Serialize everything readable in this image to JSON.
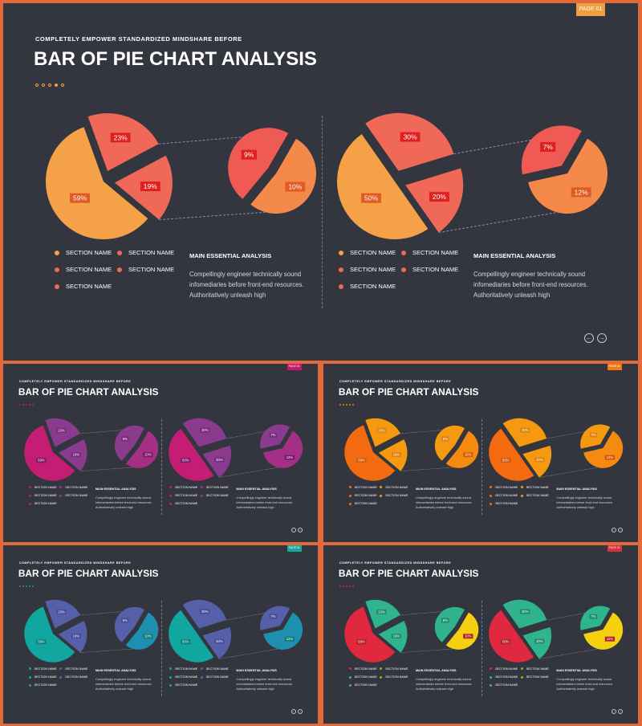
{
  "slides": [
    {
      "badge": "PAGE 01",
      "subtitle": "COMPLETELY EMPOWER STANDARDIZED MINDSHARE BEFORE",
      "title": "BAR OF PIE CHART ANALYSIS",
      "colors": {
        "badge": "#f0a040",
        "mainLarge": "#f5a148",
        "mainSmall": "#ef6858",
        "labelBg": "#e05a22",
        "redLabel": "#e02020",
        "detailLarge": "#f5894a",
        "detailSmall": "#ef5a54",
        "dotFill": "#f0a040",
        "legend": [
          "#f5a148",
          "#ef6858",
          "#ef6858",
          "#ef6858",
          "#ef6858"
        ]
      },
      "legend": [
        "SECTION NAME",
        "SECTION NAME",
        "SECTION NAME",
        "SECTION NAME",
        "SECTION NAME"
      ],
      "analysis": {
        "heading": "MAIN ESSENTIAL ANALYSIS",
        "body": "Compellingly engineer technically sound infomediaries before front-end resources. Authoritatively unleash high"
      },
      "nav": {
        "prev": "←",
        "next": "→"
      }
    },
    {
      "badge": "PAGE 01",
      "subtitle": "COMPLETELY EMPOWER STANDARDIZED MINDSHARE BEFORE",
      "title": "BAR OF PIE CHART ANALYSIS",
      "colors": {
        "badge": "#c41a6e",
        "mainLarge": "#c51c74",
        "mainSmall": "#8a3b8e",
        "labelBg": "#7a1a6a",
        "redLabel": "#7a2a7a",
        "detailLarge": "#a43085",
        "detailSmall": "#8a3b8e",
        "dotFill": "#c51c74",
        "legend": [
          "#c51c74",
          "#8a3b8e",
          "#c51c74",
          "#8a3b8e",
          "#c51c74"
        ]
      },
      "legend": [
        "SECTION NAME",
        "SECTION NAME",
        "SECTION NAME",
        "SECTION NAME",
        "SECTION NAME"
      ],
      "analysis": {
        "heading": "MAIN ESSENTIAL ANALYSIS",
        "body": "Compellingly engineer technically sound infomediaries before front-end resources. Authoritatively unleash high"
      },
      "nav": {
        "prev": "←",
        "next": "→"
      }
    },
    {
      "badge": "PAGE 01",
      "subtitle": "COMPLETELY EMPOWER STANDARDIZED MINDSHARE BEFORE",
      "title": "BAR OF PIE CHART ANALYSIS",
      "colors": {
        "badge": "#f07a10",
        "mainLarge": "#f46a10",
        "mainSmall": "#f59a10",
        "labelBg": "#d05a08",
        "redLabel": "#e08010",
        "detailLarge": "#f58a10",
        "detailSmall": "#f59a10",
        "dotFill": "#f07a10",
        "legend": [
          "#f46a10",
          "#f59a10",
          "#f46a10",
          "#f59a10",
          "#f46a10"
        ]
      },
      "legend": [
        "SECTION NAME",
        "SECTION NAME",
        "SECTION NAME",
        "SECTION NAME",
        "SECTION NAME"
      ],
      "analysis": {
        "heading": "MAIN ESSENTIAL ANALYSIS",
        "body": "Compellingly engineer technically sound infomediaries before front-end resources. Authoritatively unleash high"
      },
      "nav": {
        "prev": "←",
        "next": "→"
      }
    },
    {
      "badge": "PAGE 01",
      "subtitle": "COMPLETELY EMPOWER STANDARDIZED MINDSHARE BEFORE",
      "title": "BAR OF PIE CHART ANALYSIS",
      "colors": {
        "badge": "#16a89a",
        "mainLarge": "#11a6a0",
        "mainSmall": "#5560a8",
        "labelBg": "#0e7e78",
        "redLabel": "#4a4a9a",
        "detailLarge": "#1f8fb0",
        "detailSmall": "#5560a8",
        "dotFill": "#11a6a0",
        "legend": [
          "#11a6a0",
          "#5560a8",
          "#11a6a0",
          "#5560a8",
          "#11a6a0"
        ]
      },
      "legend": [
        "SECTION NAME",
        "SECTION NAME",
        "SECTION NAME",
        "SECTION NAME",
        "SECTION NAME"
      ],
      "analysis": {
        "heading": "MAIN ESSENTIAL ANALYSIS",
        "body": "Compellingly engineer technically sound infomediaries before front-end resources. Authoritatively unleash high"
      },
      "nav": {
        "prev": "←",
        "next": "→"
      }
    },
    {
      "badge": "PAGE 01",
      "subtitle": "COMPLETELY EMPOWER STANDARDIZED MINDSHARE BEFORE",
      "title": "BAR OF PIE CHART ANALYSIS",
      "colors": {
        "badge": "#d8303e",
        "mainLarge": "#e0283e",
        "mainSmall": "#2fb48e",
        "labelBg": "#b0202e",
        "redLabel": "#1f8a70",
        "detailLarge": "#f5d010",
        "detailSmall": "#2fb48e",
        "extra": "#7cba24",
        "dotFill": "#e0283e",
        "legend": [
          "#e0283e",
          "#7cba24",
          "#2fb48e",
          "#7cba24",
          "#2fb48e"
        ]
      },
      "legend": [
        "SECTION NAME",
        "SECTION NAME",
        "SECTION NAME",
        "SECTION NAME",
        "SECTION NAME"
      ],
      "analysis": {
        "heading": "MAIN ESSENTIAL ANALYSIS",
        "body": "Compellingly engineer technically sound infomediaries before front-end resources. Authoritatively unleash high"
      },
      "nav": {
        "prev": "←",
        "next": "→"
      }
    }
  ],
  "chart_data": [
    {
      "type": "pie",
      "title": "",
      "main": {
        "categories": [
          "",
          "",
          ""
        ],
        "values": [
          59,
          23,
          19
        ],
        "labels": [
          "59%",
          "23%",
          "19%"
        ]
      },
      "detail": {
        "values": [
          10,
          9
        ],
        "labels": [
          "10%",
          "9%"
        ]
      }
    },
    {
      "type": "pie",
      "title": "",
      "main": {
        "categories": [
          "",
          "",
          ""
        ],
        "values": [
          50,
          30,
          20
        ],
        "labels": [
          "50%",
          "30%",
          "20%"
        ]
      },
      "detail": {
        "values": [
          12,
          7
        ],
        "labels": [
          "12%",
          "7%"
        ]
      }
    }
  ]
}
